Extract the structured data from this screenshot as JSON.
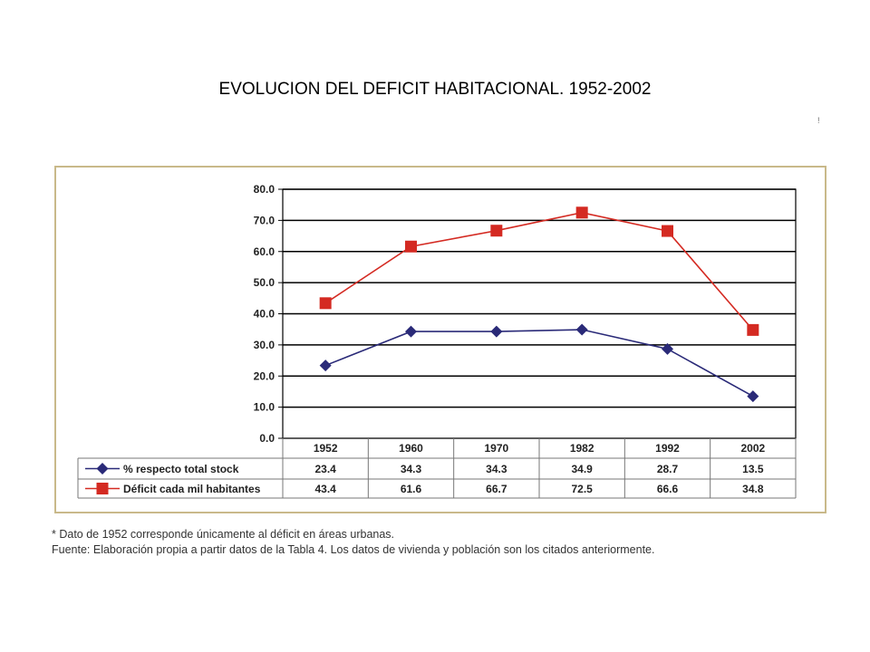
{
  "page_title": "EVOLUCION DEL DEFICIT HABITACIONAL.  1952-2002",
  "corner_mark": "!",
  "colors": {
    "series_1": "#2a2a78",
    "series_2": "#d42a22",
    "frame_border": "#c9b98a",
    "grid": "#000000"
  },
  "chart_data": {
    "type": "line",
    "categories": [
      "1952",
      "1960",
      "1970",
      "1982",
      "1992",
      "2002"
    ],
    "ylim": [
      0,
      80
    ],
    "yticks": [
      "0.0",
      "10.0",
      "20.0",
      "30.0",
      "40.0",
      "50.0",
      "60.0",
      "70.0",
      "80.0"
    ],
    "grid": true,
    "legend": "data-table-below",
    "series": [
      {
        "name": "% respecto total stock",
        "marker": "diamond",
        "values": [
          23.4,
          34.3,
          34.3,
          34.9,
          28.7,
          13.5
        ],
        "labels": [
          "23.4",
          "34.3",
          "34.3",
          "34.9",
          "28.7",
          "13.5"
        ]
      },
      {
        "name": "Déficit cada mil habitantes",
        "marker": "square",
        "values": [
          43.4,
          61.6,
          66.7,
          72.5,
          66.6,
          34.8
        ],
        "labels": [
          "43.4",
          "61.6",
          "66.7",
          "72.5",
          "66.6",
          "34.8"
        ]
      }
    ]
  },
  "notes": [
    "* Dato de 1952 corresponde únicamente al déficit en áreas urbanas.",
    "Fuente: Elaboración propia a partir datos de la Tabla 4. Los datos de vivienda y población son los citados anteriormente."
  ]
}
